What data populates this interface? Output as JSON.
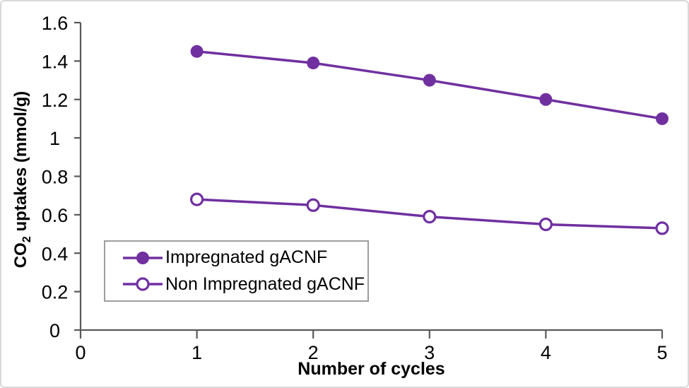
{
  "figure": {
    "background": "#ffffff",
    "border_color": "#d9d9d9"
  },
  "chart_data": {
    "type": "line",
    "title": "",
    "xlabel": "Number of cycles",
    "ylabel": "CO2 uptakes (mmol/g)",
    "ylabel_parts": {
      "pre": "CO",
      "sub": "2",
      "post": " uptakes (mmol/g)"
    },
    "x": [
      1,
      2,
      3,
      4,
      5
    ],
    "series": [
      {
        "name": "Impregnated gACNF",
        "marker": "filled-circle",
        "color": "#7030A0",
        "values": [
          1.45,
          1.39,
          1.3,
          1.2,
          1.1
        ]
      },
      {
        "name": "Non Impregnated gACNF",
        "marker": "open-circle",
        "color": "#7030A0",
        "values": [
          0.68,
          0.65,
          0.59,
          0.55,
          0.53
        ]
      }
    ],
    "xlim": [
      0,
      5
    ],
    "ylim": [
      0,
      1.6
    ],
    "xticks": {
      "values": [
        0,
        1,
        2,
        3,
        4,
        5
      ],
      "labels": [
        "0",
        "1",
        "2",
        "3",
        "4",
        "5"
      ]
    },
    "yticks": {
      "values": [
        0,
        0.2,
        0.4,
        0.6,
        0.8,
        1,
        1.2,
        1.4,
        1.6
      ],
      "labels": [
        "0",
        "0.2",
        "0.4",
        "0.6",
        "0.8",
        "1",
        "1.2",
        "1.4",
        "1.6"
      ]
    },
    "grid": false,
    "legend": {
      "position": "inside-bottom-left"
    },
    "colors": {
      "series": "#7030A0",
      "axis": "#595959",
      "text": "#000000",
      "legend_border": "#9e9e9e"
    }
  }
}
